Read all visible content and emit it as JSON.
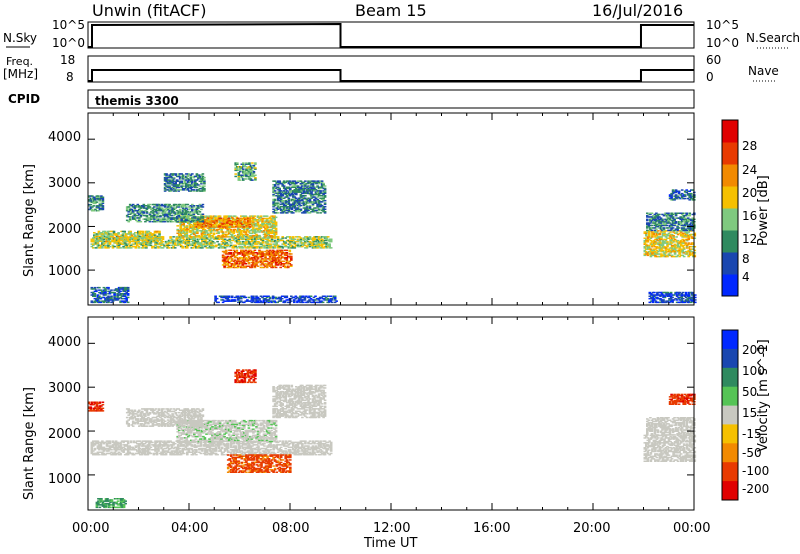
{
  "header": {
    "title": "Unwin (fitACF)",
    "beam": "Beam 15",
    "date": "16/Jul/2016"
  },
  "panels": {
    "nsky": {
      "label": "N.Sky",
      "ticks_left": [
        "10^5",
        "10^0"
      ],
      "label_right": "N.Search",
      "ticks_right": [
        "10^5",
        "10^0"
      ]
    },
    "freq": {
      "label_top": "Freq.",
      "label_bottom": "[MHz]",
      "ticks_left": [
        "18",
        "8"
      ],
      "label_right": "Nave",
      "ticks_right": [
        "60",
        "0"
      ]
    },
    "cpid": {
      "label": "CPID",
      "value": "themis 3300"
    }
  },
  "chart_data": [
    {
      "type": "heatmap",
      "title": "",
      "xlabel": "",
      "ylabel": "Slant Range [km]",
      "xlim": [
        0,
        24
      ],
      "ylim": [
        200,
        4600
      ],
      "y_ticks": [
        "1000",
        "2000",
        "3000",
        "4000"
      ],
      "colorbar": {
        "label": "Power [dB]",
        "ticks": [
          "4",
          "8",
          "12",
          "16",
          "20",
          "24",
          "28"
        ],
        "range": [
          0,
          32
        ]
      },
      "colors": [
        "#0028ff",
        "#1a47b0",
        "#2f8a5f",
        "#7fc97f",
        "#f5c000",
        "#f28a00",
        "#e83a00",
        "#e00000"
      ],
      "regions": [
        {
          "t": [
            0.1,
            9.6
          ],
          "range": [
            1500,
            1760
          ],
          "level": 0.45
        },
        {
          "t": [
            3.5,
            7.4
          ],
          "range": [
            1750,
            2250
          ],
          "level": 0.55
        },
        {
          "t": [
            5.3,
            8.0
          ],
          "range": [
            1050,
            1450
          ],
          "level": 0.78
        },
        {
          "t": [
            4.2,
            6.4
          ],
          "range": [
            1980,
            2200
          ],
          "level": 0.72
        },
        {
          "t": [
            0.2,
            2.8
          ],
          "range": [
            1650,
            1900
          ],
          "level": 0.5
        },
        {
          "t": [
            1.5,
            4.5
          ],
          "range": [
            2100,
            2500
          ],
          "level": 0.3
        },
        {
          "t": [
            7.3,
            9.4
          ],
          "range": [
            2300,
            3050
          ],
          "level": 0.25
        },
        {
          "t": [
            5.8,
            6.6
          ],
          "range": [
            3050,
            3450
          ],
          "level": 0.35
        },
        {
          "t": [
            3.0,
            4.6
          ],
          "range": [
            2800,
            3200
          ],
          "level": 0.25
        },
        {
          "t": [
            0.1,
            1.6
          ],
          "range": [
            250,
            600
          ],
          "level": 0.18
        },
        {
          "t": [
            5.0,
            9.8
          ],
          "range": [
            250,
            400
          ],
          "level": 0.1
        },
        {
          "t": [
            0.0,
            0.6
          ],
          "range": [
            2350,
            2700
          ],
          "level": 0.25
        },
        {
          "t": [
            22.0,
            24.0
          ],
          "range": [
            1300,
            1900
          ],
          "level": 0.55
        },
        {
          "t": [
            22.1,
            24.0
          ],
          "range": [
            1900,
            2300
          ],
          "level": 0.25
        },
        {
          "t": [
            23.0,
            24.0
          ],
          "range": [
            2600,
            2850
          ],
          "level": 0.2
        },
        {
          "t": [
            22.2,
            24.0
          ],
          "range": [
            250,
            500
          ],
          "level": 0.1
        }
      ]
    },
    {
      "type": "heatmap",
      "title": "",
      "xlabel": "Time UT",
      "ylabel": "Slant Range [km]",
      "xlim": [
        0,
        24
      ],
      "ylim": [
        200,
        4600
      ],
      "x_ticks": [
        "00:00",
        "04:00",
        "08:00",
        "12:00",
        "16:00",
        "20:00",
        "00:00"
      ],
      "y_ticks": [
        "1000",
        "2000",
        "3000",
        "4000"
      ],
      "colorbar": {
        "label": "Velocity [m s^-1]",
        "ticks": [
          "200",
          "100",
          "50",
          "15",
          "-15",
          "-50",
          "-100",
          "-200"
        ],
        "range": [
          -250,
          250
        ]
      },
      "colors": [
        "#0028ff",
        "#1a47b0",
        "#2f8a5f",
        "#55c455",
        "#c8c8c0",
        "#f5c000",
        "#f28a00",
        "#e83a00",
        "#e00000"
      ],
      "regions": [
        {
          "t": [
            0.1,
            9.6
          ],
          "range": [
            1450,
            1760
          ],
          "level": 0.0
        },
        {
          "t": [
            3.5,
            7.4
          ],
          "range": [
            1750,
            2250
          ],
          "level": 0.05
        },
        {
          "t": [
            5.5,
            8.0
          ],
          "range": [
            1050,
            1450
          ],
          "level": -0.7
        },
        {
          "t": [
            1.5,
            4.5
          ],
          "range": [
            2100,
            2500
          ],
          "level": 0.0
        },
        {
          "t": [
            7.3,
            9.4
          ],
          "range": [
            2300,
            3050
          ],
          "level": 0.0
        },
        {
          "t": [
            5.8,
            6.6
          ],
          "range": [
            3100,
            3400
          ],
          "level": -0.85
        },
        {
          "t": [
            0.0,
            0.6
          ],
          "range": [
            2450,
            2650
          ],
          "level": -0.85
        },
        {
          "t": [
            0.3,
            1.5
          ],
          "range": [
            250,
            450
          ],
          "level": 0.4
        },
        {
          "t": [
            22.0,
            24.0
          ],
          "range": [
            1300,
            1900
          ],
          "level": 0.0
        },
        {
          "t": [
            23.0,
            24.0
          ],
          "range": [
            2600,
            2850
          ],
          "level": -0.8
        },
        {
          "t": [
            22.1,
            24.0
          ],
          "range": [
            1900,
            2300
          ],
          "level": 0.0
        }
      ]
    }
  ]
}
